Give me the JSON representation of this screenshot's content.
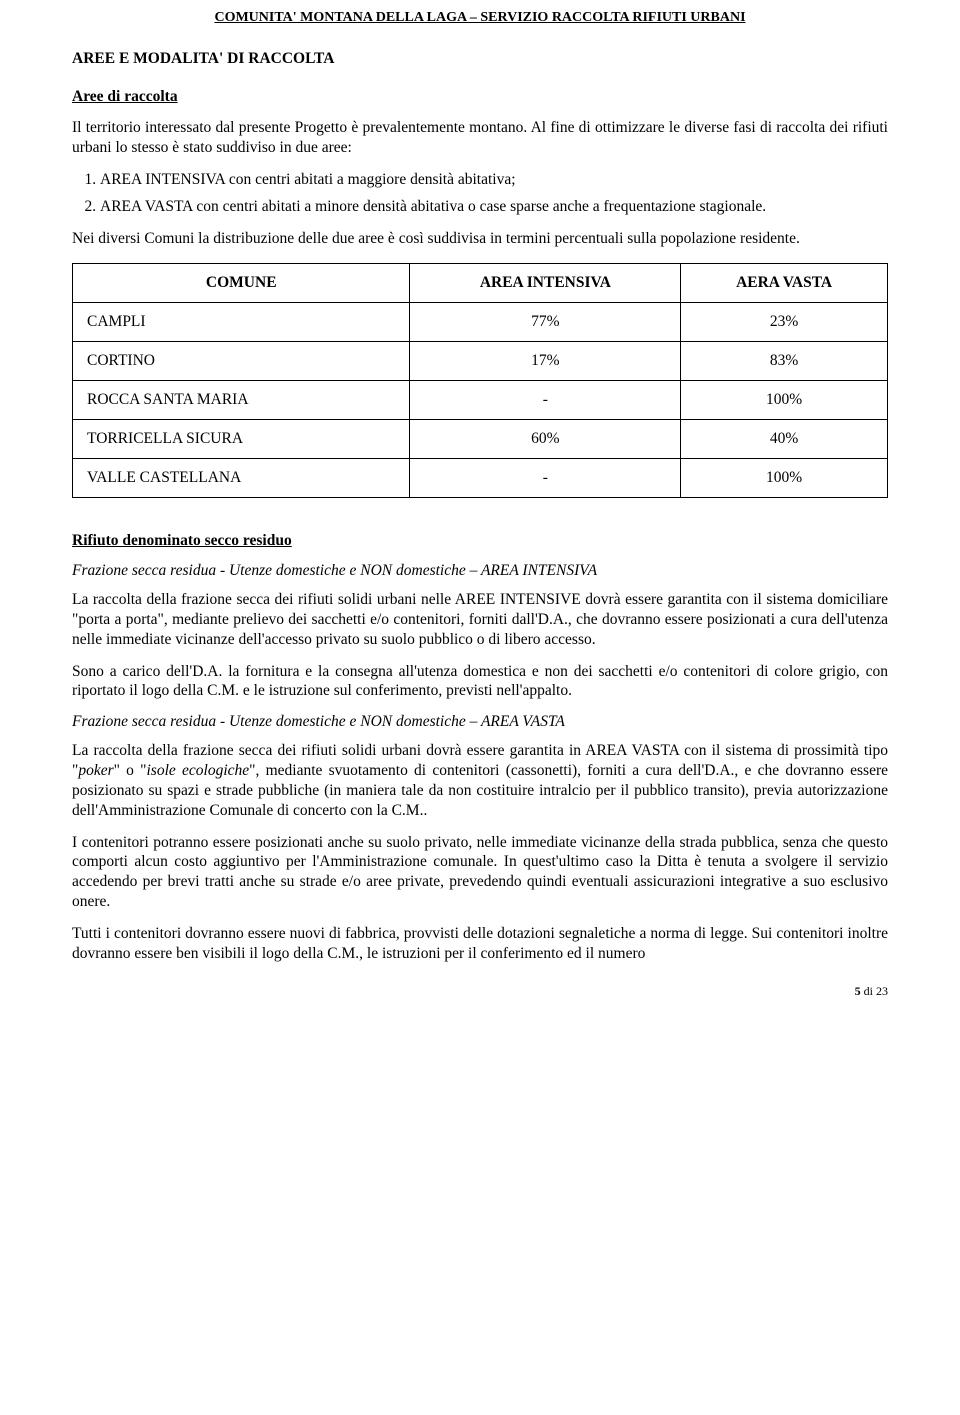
{
  "header": "COMUNITA' MONTANA DELLA LAGA – SERVIZIO RACCOLTA RIFIUTI URBANI",
  "section_title": "AREE E MODALITA' DI RACCOLTA",
  "aree": {
    "title": "Aree di raccolta",
    "p1": "Il territorio interessato dal presente Progetto è prevalentemente montano. Al fine di ottimizzare le diverse fasi di raccolta dei rifiuti urbani lo stesso è stato suddiviso in due aree:",
    "li1": "AREA INTENSIVA con centri abitati a maggiore densità abitativa;",
    "li2": "AREA VASTA con centri abitati a minore densità abitativa o case sparse anche a frequentazione stagionale.",
    "p2": "Nei diversi Comuni la distribuzione delle due aree è così suddivisa in termini percentuali sulla popolazione residente."
  },
  "table": {
    "headers": {
      "c0": "COMUNE",
      "c1": "AREA INTENSIVA",
      "c2": "AERA VASTA"
    },
    "rows": [
      {
        "c0": "CAMPLI",
        "c1": "77%",
        "c2": "23%"
      },
      {
        "c0": "CORTINO",
        "c1": "17%",
        "c2": "83%"
      },
      {
        "c0": "ROCCA SANTA MARIA",
        "c1": "-",
        "c2": "100%"
      },
      {
        "c0": "TORRICELLA SICURA",
        "c1": "60%",
        "c2": "40%"
      },
      {
        "c0": "VALLE CASTELLANA",
        "c1": "-",
        "c2": "100%"
      }
    ]
  },
  "secco": {
    "title": "Rifiuto denominato secco residuo",
    "sub1_title": "Frazione secca residua - Utenze domestiche e NON domestiche – AREA INTENSIVA",
    "sub1_p1": "La raccolta della frazione secca dei rifiuti solidi urbani nelle AREE INTENSIVE dovrà essere garantita con il sistema domiciliare \"porta a porta\", mediante prelievo dei sacchetti e/o contenitori, forniti dall'D.A., che dovranno essere posizionati a cura dell'utenza nelle immediate vicinanze dell'accesso privato su suolo pubblico o di libero accesso.",
    "sub1_p2": "Sono a carico dell'D.A. la fornitura e la consegna all'utenza domestica e non dei sacchetti e/o contenitori di colore grigio, con riportato il logo della C.M. e le istruzione sul conferimento, previsti nell'appalto.",
    "sub2_title": "Frazione secca residua - Utenze domestiche e NON domestiche – AREA VASTA",
    "sub2_p1_a": "La raccolta della frazione secca dei rifiuti solidi urbani dovrà essere garantita in AREA VASTA con il sistema di prossimità tipo ",
    "sub2_p1_poker": "poker",
    "sub2_p1_b": " o ",
    "sub2_p1_isole": "isole ecologiche",
    "sub2_p1_c": ", mediante svuotamento di contenitori (cassonetti), forniti a cura dell'D.A., e che dovranno essere posizionato su spazi e strade pubbliche (in maniera tale da non costituire intralcio per il pubblico transito), previa autorizzazione dell'Amministrazione Comunale di concerto con la C.M..",
    "sub2_p2": "I contenitori potranno essere posizionati anche su suolo privato, nelle immediate vicinanze della strada pubblica, senza che questo comporti alcun costo aggiuntivo per l'Amministrazione comunale. In quest'ultimo caso la Ditta è tenuta a svolgere il servizio accedendo per brevi tratti anche su strade e/o aree private, prevedendo quindi eventuali assicurazioni integrative a suo esclusivo onere.",
    "sub2_p3": "Tutti i contenitori dovranno essere nuovi di fabbrica, provvisti delle dotazioni segnaletiche a norma di legge. Sui contenitori inoltre dovranno essere ben visibili il logo della C.M., le istruzioni per il conferimento ed il numero"
  },
  "footer": {
    "page_a": "5",
    "page_b": " di ",
    "page_c": "23"
  }
}
